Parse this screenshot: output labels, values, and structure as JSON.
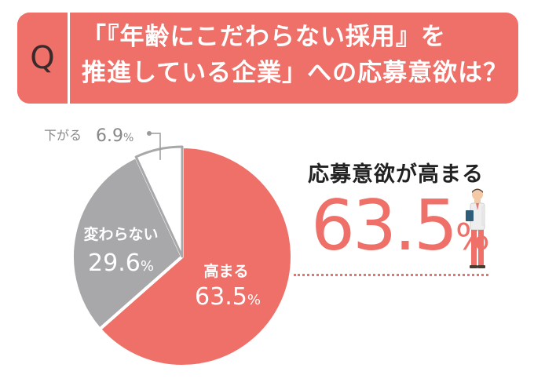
{
  "question": {
    "label": "Q",
    "line1": "「『年齢にこだわらない採用』を",
    "line2": "推進している企業」への応募意欲は？"
  },
  "colors": {
    "accent": "#ee7069",
    "gray": "#a8a8ab",
    "light": "#ffffff",
    "outline": "#a8a8ab"
  },
  "chart_data": {
    "type": "pie",
    "title": "",
    "slices": [
      {
        "label": "高まる",
        "value": 63.5,
        "unit": "%",
        "color": "#ee7069"
      },
      {
        "label": "変わらない",
        "value": 29.6,
        "unit": "%",
        "color": "#a8a8ab"
      },
      {
        "label": "下がる",
        "value": 6.9,
        "unit": "%",
        "color": "#ffffff"
      }
    ]
  },
  "highlight": {
    "headline": "応募意欲が高まる",
    "value": "63.5",
    "unit": "%"
  },
  "illustration": {
    "icon": "business-person-icon"
  }
}
